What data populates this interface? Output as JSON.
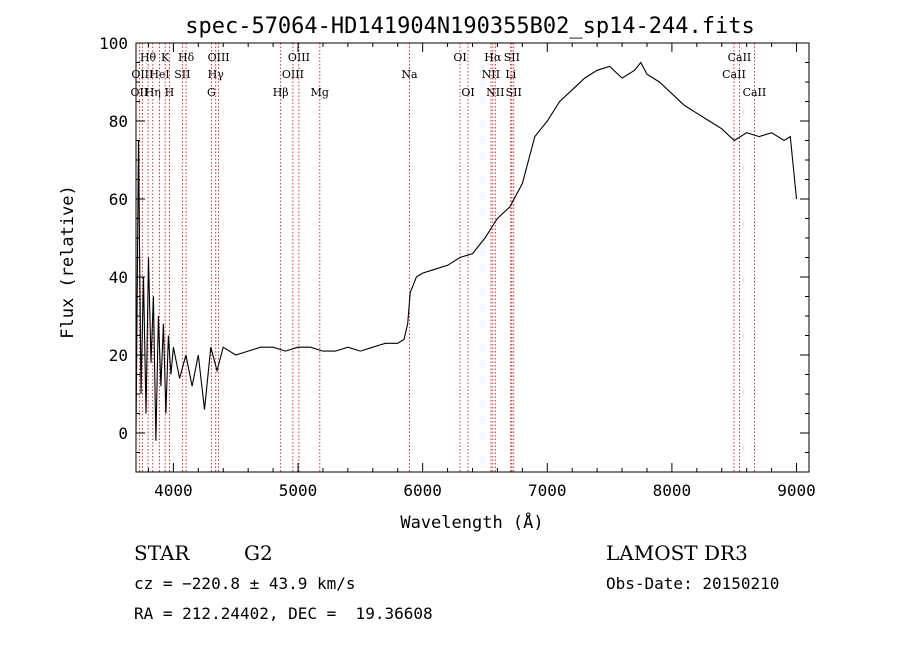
{
  "chart_data": {
    "type": "line",
    "title": "spec-57064-HD141904N190355B02_sp14-244.fits",
    "xlabel": "Wavelength (Å)",
    "ylabel": "Flux (relative)",
    "xlim": [
      3700,
      9100
    ],
    "ylim": [
      -10,
      100
    ],
    "xticks": [
      4000,
      5000,
      6000,
      7000,
      8000,
      9000
    ],
    "yticks": [
      0,
      20,
      40,
      60,
      80,
      100
    ],
    "series": [
      {
        "name": "spectrum",
        "x": [
          3700,
          3720,
          3740,
          3760,
          3780,
          3800,
          3820,
          3840,
          3860,
          3880,
          3900,
          3920,
          3940,
          3960,
          3980,
          4000,
          4050,
          4100,
          4150,
          4200,
          4250,
          4300,
          4350,
          4400,
          4500,
          4600,
          4700,
          4800,
          4900,
          5000,
          5100,
          5200,
          5300,
          5400,
          5500,
          5600,
          5700,
          5800,
          5850,
          5880,
          5900,
          5950,
          6000,
          6100,
          6200,
          6300,
          6400,
          6500,
          6560,
          6600,
          6700,
          6800,
          6850,
          6900,
          6950,
          7000,
          7100,
          7200,
          7300,
          7400,
          7500,
          7600,
          7700,
          7750,
          7800,
          7900,
          8000,
          8100,
          8200,
          8300,
          8400,
          8500,
          8600,
          8700,
          8800,
          8900,
          8950,
          9000
        ],
        "y": [
          0,
          75,
          10,
          40,
          5,
          45,
          18,
          35,
          -2,
          30,
          12,
          28,
          5,
          25,
          15,
          22,
          14,
          20,
          12,
          20,
          6,
          22,
          16,
          22,
          20,
          21,
          22,
          22,
          21,
          22,
          22,
          21,
          21,
          22,
          21,
          22,
          23,
          23,
          24,
          28,
          36,
          40,
          41,
          42,
          43,
          45,
          46,
          50,
          53,
          55,
          58,
          64,
          70,
          76,
          78,
          80,
          85,
          88,
          91,
          93,
          94,
          91,
          93,
          95,
          92,
          90,
          87,
          84,
          82,
          80,
          78,
          75,
          77,
          76,
          77,
          75,
          76,
          60
        ]
      }
    ],
    "line_markers": [
      {
        "label": "OII",
        "wavelength": 3727,
        "row": 3
      },
      {
        "label": "Hθ",
        "wavelength": 3797,
        "row": 1
      },
      {
        "label": "OIII",
        "wavelength": 3751,
        "row": 2
      },
      {
        "label": "Hη",
        "wavelength": 3835,
        "row": 3
      },
      {
        "label": "HeI",
        "wavelength": 3889,
        "row": 2
      },
      {
        "label": "K",
        "wavelength": 3934,
        "row": 1
      },
      {
        "label": "H",
        "wavelength": 3968,
        "row": 3
      },
      {
        "label": "SII",
        "wavelength": 4072,
        "row": 2
      },
      {
        "label": "Hδ",
        "wavelength": 4102,
        "row": 1
      },
      {
        "label": "G",
        "wavelength": 4305,
        "row": 3
      },
      {
        "label": "Hγ",
        "wavelength": 4340,
        "row": 2
      },
      {
        "label": "OIII",
        "wavelength": 4363,
        "row": 1
      },
      {
        "label": "Hβ",
        "wavelength": 4861,
        "row": 3
      },
      {
        "label": "OIII",
        "wavelength": 4959,
        "row": 2
      },
      {
        "label": "OIII",
        "wavelength": 5007,
        "row": 1
      },
      {
        "label": "Mg",
        "wavelength": 5175,
        "row": 3
      },
      {
        "label": "Na",
        "wavelength": 5894,
        "row": 2
      },
      {
        "label": "OI",
        "wavelength": 6300,
        "row": 1
      },
      {
        "label": "OI",
        "wavelength": 6364,
        "row": 3
      },
      {
        "label": "NII",
        "wavelength": 6548,
        "row": 2
      },
      {
        "label": "Hα",
        "wavelength": 6563,
        "row": 1
      },
      {
        "label": "NII",
        "wavelength": 6583,
        "row": 3
      },
      {
        "label": "SII",
        "wavelength": 6716,
        "row": 1
      },
      {
        "label": "Li",
        "wavelength": 6707,
        "row": 2
      },
      {
        "label": "SII",
        "wavelength": 6731,
        "row": 3
      },
      {
        "label": "CaII",
        "wavelength": 8498,
        "row": 2
      },
      {
        "label": "CaII",
        "wavelength": 8542,
        "row": 1
      },
      {
        "label": "CaII",
        "wavelength": 8662,
        "row": 3
      }
    ]
  },
  "info": {
    "object_class": "STAR",
    "subclass": "G2",
    "survey": "LAMOST DR3",
    "cz": "cz = −220.8 ± 43.9 km/s",
    "obs_date": "Obs-Date: 20150210",
    "coords": "RA = 212.24402, DEC =  19.36608"
  },
  "colors": {
    "axis": "#000000",
    "spectrum": "#000000",
    "marker_line": "#cc0000"
  }
}
